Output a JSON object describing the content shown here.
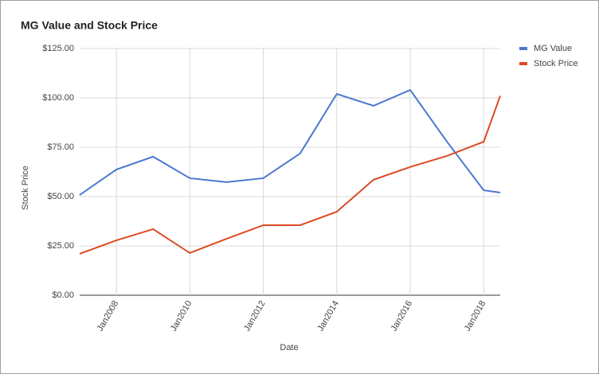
{
  "chart_data": {
    "type": "line",
    "title": "MG Value and Stock Price",
    "x_label": "Date",
    "y_label": "Stock Price",
    "x": [
      2007,
      2008,
      2009,
      2010,
      2011,
      2012,
      2013,
      2014,
      2015,
      2016,
      2017,
      2018,
      2018.45
    ],
    "series": [
      {
        "name": "MG Value",
        "color": "#4a78cf",
        "values": [
          50.8,
          63.7,
          70.2,
          59.3,
          57.3,
          59.3,
          71.8,
          102,
          96,
          104,
          77.8,
          53.2,
          52
        ]
      },
      {
        "name": "Stock Price",
        "color": "#dc4a23",
        "values": [
          21,
          27.8,
          33.5,
          21.4,
          28.6,
          35.5,
          35.5,
          42.3,
          58.5,
          65,
          70.6,
          77.8,
          101
        ]
      }
    ],
    "xlim": [
      2007,
      2018.45
    ],
    "xticks": [
      {
        "value": 2008,
        "label": "Jan2008"
      },
      {
        "value": 2010,
        "label": "Jan2010"
      },
      {
        "value": 2012,
        "label": "Jan2012"
      },
      {
        "value": 2014,
        "label": "Jan2014"
      },
      {
        "value": 2016,
        "label": "Jan2016"
      },
      {
        "value": 2018,
        "label": "Jan2018"
      }
    ],
    "ylim": [
      0,
      125
    ],
    "yticks": [
      {
        "value": 0,
        "label": "$0.00"
      },
      {
        "value": 25,
        "label": "$25.00"
      },
      {
        "value": 50,
        "label": "$50.00"
      },
      {
        "value": 75,
        "label": "$75.00"
      },
      {
        "value": 100,
        "label": "$100.00"
      },
      {
        "value": 125,
        "label": "$125.00"
      }
    ],
    "grid": true,
    "legend": "right"
  }
}
